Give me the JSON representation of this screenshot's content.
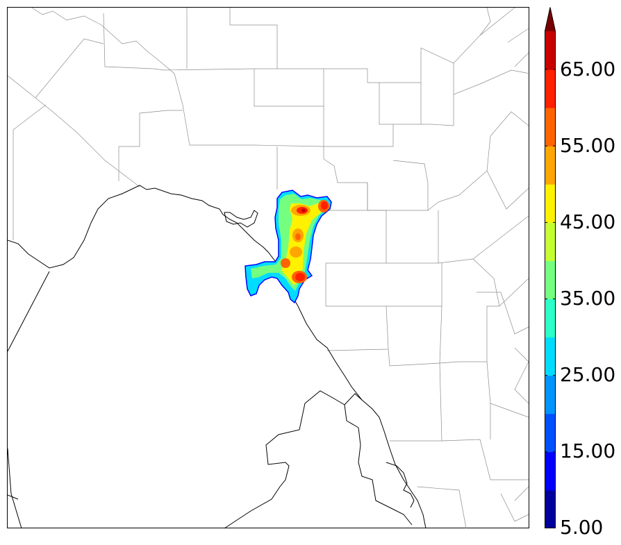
{
  "colorbar": {
    "labels": [
      "65.00",
      "55.00",
      "45.00",
      "35.00",
      "25.00",
      "15.00",
      "5.00"
    ],
    "colors": [
      "#00009c",
      "#0000ff",
      "#0050ff",
      "#0094ff",
      "#00dcff",
      "#2cffc8",
      "#74ff80",
      "#c4ff30",
      "#fff200",
      "#ffa600",
      "#ff6400",
      "#ff2000",
      "#c80000",
      "#7a0000"
    ]
  },
  "colors": {
    "county_line": "#8c8c8c",
    "border_line": "#000000",
    "background": "#ffffff"
  }
}
